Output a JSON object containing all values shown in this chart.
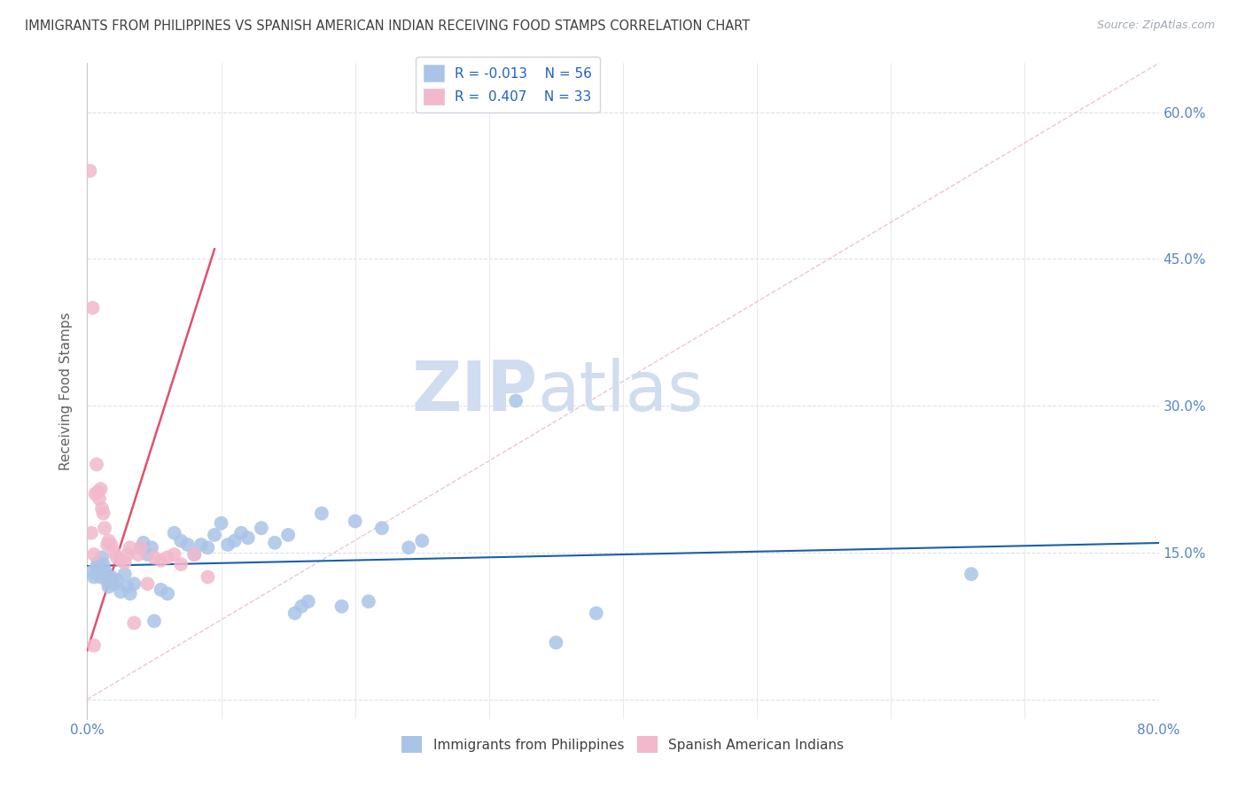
{
  "title": "IMMIGRANTS FROM PHILIPPINES VS SPANISH AMERICAN INDIAN RECEIVING FOOD STAMPS CORRELATION CHART",
  "source": "Source: ZipAtlas.com",
  "xlabel_blue": "Immigrants from Philippines",
  "xlabel_pink": "Spanish American Indians",
  "ylabel": "Receiving Food Stamps",
  "watermark_zip": "ZIP",
  "watermark_atlas": "atlas",
  "legend_blue_R": "-0.013",
  "legend_blue_N": "56",
  "legend_pink_R": "0.407",
  "legend_pink_N": "33",
  "xlim": [
    0.0,
    0.8
  ],
  "ylim": [
    -0.02,
    0.65
  ],
  "yticks": [
    0.0,
    0.15,
    0.3,
    0.45,
    0.6
  ],
  "blue_scatter_x": [
    0.003,
    0.005,
    0.007,
    0.008,
    0.009,
    0.01,
    0.011,
    0.012,
    0.013,
    0.014,
    0.015,
    0.016,
    0.018,
    0.02,
    0.022,
    0.025,
    0.028,
    0.03,
    0.032,
    0.035,
    0.04,
    0.042,
    0.045,
    0.048,
    0.05,
    0.055,
    0.06,
    0.065,
    0.07,
    0.075,
    0.08,
    0.085,
    0.09,
    0.095,
    0.1,
    0.105,
    0.11,
    0.115,
    0.12,
    0.13,
    0.14,
    0.15,
    0.155,
    0.16,
    0.165,
    0.175,
    0.19,
    0.2,
    0.21,
    0.22,
    0.24,
    0.25,
    0.32,
    0.38,
    0.66,
    0.35
  ],
  "blue_scatter_y": [
    0.13,
    0.125,
    0.135,
    0.14,
    0.13,
    0.125,
    0.145,
    0.138,
    0.132,
    0.128,
    0.12,
    0.115,
    0.125,
    0.118,
    0.122,
    0.11,
    0.128,
    0.115,
    0.108,
    0.118,
    0.155,
    0.16,
    0.148,
    0.155,
    0.08,
    0.112,
    0.108,
    0.17,
    0.162,
    0.158,
    0.148,
    0.158,
    0.155,
    0.168,
    0.18,
    0.158,
    0.162,
    0.17,
    0.165,
    0.175,
    0.16,
    0.168,
    0.088,
    0.095,
    0.1,
    0.19,
    0.095,
    0.182,
    0.1,
    0.175,
    0.155,
    0.162,
    0.305,
    0.088,
    0.128,
    0.058
  ],
  "pink_scatter_x": [
    0.002,
    0.003,
    0.004,
    0.005,
    0.006,
    0.007,
    0.008,
    0.009,
    0.01,
    0.011,
    0.012,
    0.013,
    0.015,
    0.016,
    0.018,
    0.02,
    0.022,
    0.025,
    0.028,
    0.03,
    0.032,
    0.035,
    0.038,
    0.04,
    0.045,
    0.05,
    0.055,
    0.06,
    0.065,
    0.07,
    0.08,
    0.09,
    0.005
  ],
  "pink_scatter_y": [
    0.54,
    0.17,
    0.4,
    0.055,
    0.21,
    0.24,
    0.212,
    0.205,
    0.215,
    0.195,
    0.19,
    0.175,
    0.158,
    0.162,
    0.158,
    0.15,
    0.145,
    0.142,
    0.14,
    0.148,
    0.155,
    0.078,
    0.148,
    0.155,
    0.118,
    0.145,
    0.142,
    0.145,
    0.148,
    0.138,
    0.148,
    0.125,
    0.148
  ],
  "blue_color": "#aac4e8",
  "pink_color": "#f2b8cc",
  "blue_line_color": "#1a5fa8",
  "pink_line_color": "#e0506e",
  "diag_line_color": "#e8c0d0",
  "grid_color": "#dde0ea",
  "title_color": "#404040",
  "axis_label_color": "#606060",
  "tick_color_right": "#5585c5",
  "source_color": "#a0a8b0",
  "watermark_color": "#d0ddf0"
}
